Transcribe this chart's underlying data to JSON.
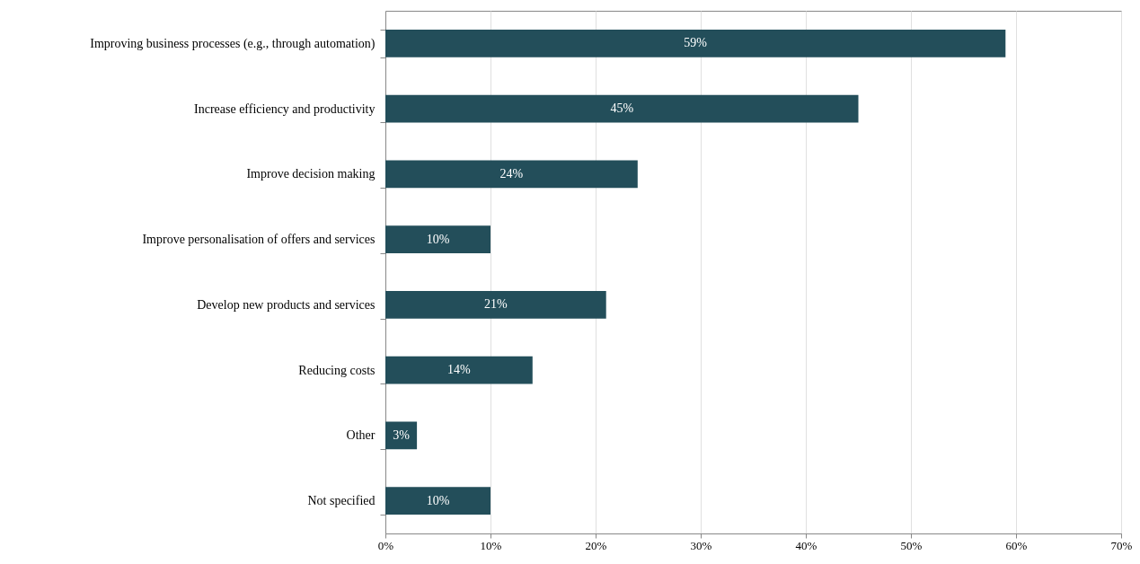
{
  "chart_data": {
    "type": "bar",
    "orientation": "horizontal",
    "categories": [
      "Improving business processes (e.g., through automation)",
      "Increase efficiency and productivity",
      "Improve decision making",
      "Improve personalisation of offers and services",
      "Develop new products and services",
      "Reducing costs",
      "Other",
      "Not specified"
    ],
    "values": [
      59,
      45,
      24,
      10,
      21,
      14,
      3,
      10
    ],
    "value_labels": [
      "59%",
      "45%",
      "24%",
      "10%",
      "21%",
      "14%",
      "3%",
      "10%"
    ],
    "color": "#234e5a",
    "xlim": [
      0,
      70
    ],
    "xticks": [
      {
        "value": 0,
        "label": "0%"
      },
      {
        "value": 10,
        "label": "10%"
      },
      {
        "value": 20,
        "label": "20%"
      },
      {
        "value": 30,
        "label": "30%"
      },
      {
        "value": 40,
        "label": "40%"
      },
      {
        "value": 50,
        "label": "50%"
      },
      {
        "value": 60,
        "label": "60%"
      },
      {
        "value": 70,
        "label": "70%"
      }
    ],
    "grid": "x"
  }
}
